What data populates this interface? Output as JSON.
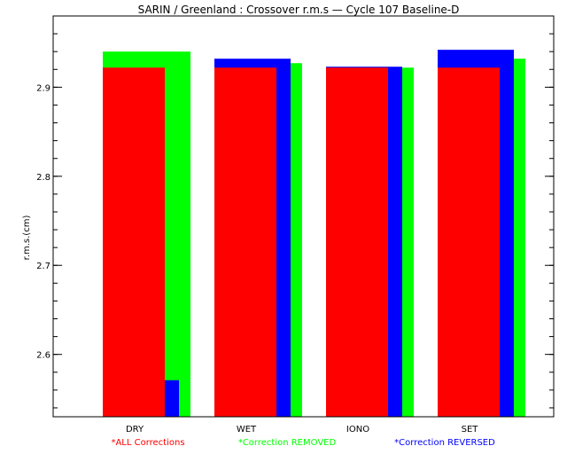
{
  "chart_data": {
    "type": "bar",
    "title": "SARIN / Greenland : Crossover r.m.s — Cycle 107 Baseline-D",
    "ylabel": "r.m.s.(cm)",
    "xlabel": "",
    "ylim": [
      2.53,
      2.98
    ],
    "yticks": [
      "2.6",
      "2.7",
      "2.8",
      "2.9"
    ],
    "ytick_values": [
      2.6,
      2.7,
      2.8,
      2.9
    ],
    "categories": [
      "DRY",
      "WET",
      "IONO",
      "SET"
    ],
    "series": [
      {
        "name": "*ALL Corrections",
        "color": "#ff0000",
        "values": [
          2.922,
          2.922,
          2.922,
          2.922
        ]
      },
      {
        "name": "*Correction REMOVED",
        "color": "#00ff00",
        "values": [
          2.94,
          2.927,
          2.922,
          2.932
        ]
      },
      {
        "name": "*Correction REVERSED",
        "color": "#0000ff",
        "values": [
          2.571,
          2.932,
          2.923,
          2.942
        ]
      }
    ],
    "legend_position": "bottom",
    "grid": false
  }
}
